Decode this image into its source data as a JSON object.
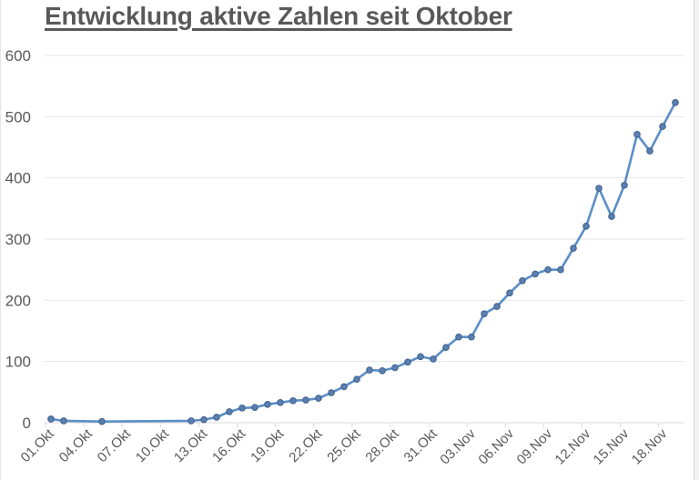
{
  "chart_data": {
    "type": "line",
    "title": "Entwicklung aktive Zahlen seit Oktober",
    "xlabel": "",
    "ylabel": "",
    "ylim": [
      0,
      600
    ],
    "yticks": [
      0,
      100,
      200,
      300,
      400,
      500,
      600
    ],
    "grid": true,
    "legend": null,
    "x_tick_labels": [
      "01.Okt",
      "04.Okt",
      "07.Okt",
      "10.Okt",
      "13.Okt",
      "16.Okt",
      "19.Okt",
      "22.Okt",
      "25.Okt",
      "28.Okt",
      "31.Okt",
      "03.Nov",
      "06.Nov",
      "09.Nov",
      "12.Nov",
      "15.Nov",
      "18.Nov"
    ],
    "series": [
      {
        "name": "aktive Zahlen",
        "color": "#5b8fc7",
        "marker_color": "#5a7fb0",
        "points": [
          {
            "x": "01.Okt",
            "day": 0,
            "y": 6
          },
          {
            "x": "02.Okt",
            "day": 1,
            "y": 3
          },
          {
            "x": "05.Okt",
            "day": 4,
            "y": 2
          },
          {
            "x": "12.Okt",
            "day": 11,
            "y": 3
          },
          {
            "x": "13.Okt",
            "day": 12,
            "y": 5
          },
          {
            "x": "14.Okt",
            "day": 13,
            "y": 9
          },
          {
            "x": "15.Okt",
            "day": 14,
            "y": 18
          },
          {
            "x": "16.Okt",
            "day": 15,
            "y": 24
          },
          {
            "x": "17.Okt",
            "day": 16,
            "y": 25
          },
          {
            "x": "18.Okt",
            "day": 17,
            "y": 30
          },
          {
            "x": "19.Okt",
            "day": 18,
            "y": 33
          },
          {
            "x": "20.Okt",
            "day": 19,
            "y": 36
          },
          {
            "x": "21.Okt",
            "day": 20,
            "y": 37
          },
          {
            "x": "22.Okt",
            "day": 21,
            "y": 40
          },
          {
            "x": "23.Okt",
            "day": 22,
            "y": 49
          },
          {
            "x": "24.Okt",
            "day": 23,
            "y": 59
          },
          {
            "x": "25.Okt",
            "day": 24,
            "y": 71
          },
          {
            "x": "26.Okt",
            "day": 25,
            "y": 86
          },
          {
            "x": "27.Okt",
            "day": 26,
            "y": 85
          },
          {
            "x": "28.Okt",
            "day": 27,
            "y": 90
          },
          {
            "x": "29.Okt",
            "day": 28,
            "y": 99
          },
          {
            "x": "30.Okt",
            "day": 29,
            "y": 108
          },
          {
            "x": "31.Okt",
            "day": 30,
            "y": 104
          },
          {
            "x": "01.Nov",
            "day": 31,
            "y": 123
          },
          {
            "x": "02.Nov",
            "day": 32,
            "y": 140
          },
          {
            "x": "03.Nov",
            "day": 33,
            "y": 140
          },
          {
            "x": "04.Nov",
            "day": 34,
            "y": 178
          },
          {
            "x": "05.Nov",
            "day": 35,
            "y": 190
          },
          {
            "x": "06.Nov",
            "day": 36,
            "y": 212
          },
          {
            "x": "07.Nov",
            "day": 37,
            "y": 232
          },
          {
            "x": "08.Nov",
            "day": 38,
            "y": 243
          },
          {
            "x": "09.Nov",
            "day": 39,
            "y": 250
          },
          {
            "x": "10.Nov",
            "day": 40,
            "y": 250
          },
          {
            "x": "11.Nov",
            "day": 41,
            "y": 285
          },
          {
            "x": "12.Nov",
            "day": 42,
            "y": 321
          },
          {
            "x": "13.Nov",
            "day": 43,
            "y": 383
          },
          {
            "x": "14.Nov",
            "day": 44,
            "y": 337
          },
          {
            "x": "15.Nov",
            "day": 45,
            "y": 388
          },
          {
            "x": "16.Nov",
            "day": 46,
            "y": 471
          },
          {
            "x": "17.Nov",
            "day": 47,
            "y": 444
          },
          {
            "x": "18.Nov",
            "day": 48,
            "y": 484
          },
          {
            "x": "19.Nov",
            "day": 49,
            "y": 523
          }
        ]
      }
    ]
  },
  "colors": {
    "title": "#595959",
    "axis_text": "#595959",
    "gridline": "#e6e6e6",
    "axis_line": "#d9d9d9",
    "line": "#5b8fc7",
    "marker_fill": "#5a7fb0",
    "marker_stroke": "#3d5f8c"
  }
}
